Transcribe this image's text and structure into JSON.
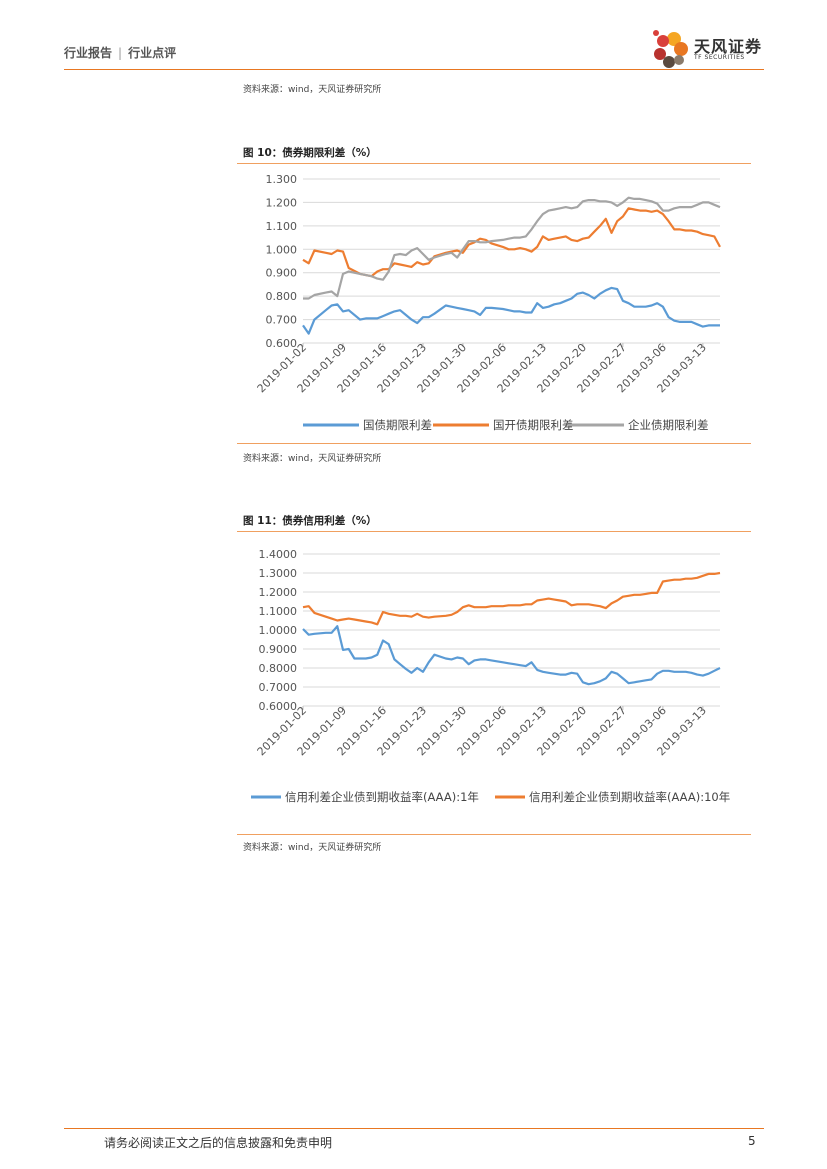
{
  "header": {
    "left": "行业报告",
    "right": "行业点评"
  },
  "logo": {
    "cn": "天风证券",
    "en": "TF SECURITIES"
  },
  "top_source": "资料来源：wind，天风证券研究所",
  "figures": [
    {
      "title": "图 10：债券期限利差（%）",
      "source": "资料来源：wind，天风证券研究所"
    },
    {
      "title": "图 11：债券信用利差（%）",
      "source": "资料来源：wind，天风证券研究所"
    }
  ],
  "footer": {
    "text": "请务必阅读正文之后的信息披露和免责申明",
    "page": "5"
  },
  "chart_data": [
    {
      "type": "line",
      "title": "图 10：债券期限利差（%）",
      "x_ticks": [
        "2019-01-02",
        "2019-01-09",
        "2019-01-16",
        "2019-01-23",
        "2019-01-30",
        "2019-02-06",
        "2019-02-13",
        "2019-02-20",
        "2019-02-27",
        "2019-03-06",
        "2019-03-13"
      ],
      "x_range_days": [
        0,
        73
      ],
      "y_ticks": [
        "0.600",
        "0.700",
        "0.800",
        "0.900",
        "1.000",
        "1.100",
        "1.200",
        "1.300"
      ],
      "ylim": [
        0.6,
        1.3
      ],
      "grid": true,
      "legend": "bottom",
      "series": [
        {
          "name": "国债期限利差",
          "color": "#5b9bd5",
          "x": [
            0,
            1,
            2,
            4,
            5,
            6,
            7,
            8,
            10,
            11,
            12,
            13,
            14,
            15,
            16,
            17,
            18,
            19,
            20,
            21,
            22,
            23,
            25,
            26,
            27,
            28,
            29,
            30,
            31,
            32,
            33,
            35,
            36,
            37,
            38,
            39,
            40,
            41,
            42,
            43,
            44,
            45,
            46,
            47,
            48,
            49,
            50,
            51,
            52,
            53,
            54,
            55,
            56,
            57,
            58,
            59,
            60,
            61,
            62,
            63,
            64,
            65,
            66,
            67,
            68,
            69,
            70,
            71,
            72,
            73
          ],
          "values": [
            0.675,
            0.64,
            0.7,
            0.74,
            0.76,
            0.765,
            0.735,
            0.74,
            0.7,
            0.705,
            0.705,
            0.705,
            0.715,
            0.725,
            0.735,
            0.74,
            0.72,
            0.7,
            0.685,
            0.71,
            0.71,
            0.725,
            0.76,
            0.755,
            0.75,
            0.745,
            0.74,
            0.735,
            0.72,
            0.75,
            0.75,
            0.745,
            0.74,
            0.735,
            0.735,
            0.73,
            0.73,
            0.77,
            0.75,
            0.755,
            0.765,
            0.77,
            0.78,
            0.79,
            0.81,
            0.815,
            0.805,
            0.79,
            0.81,
            0.825,
            0.835,
            0.83,
            0.78,
            0.77,
            0.755,
            0.755,
            0.755,
            0.76,
            0.77,
            0.755,
            0.71,
            0.695,
            0.69,
            0.69,
            0.69,
            0.68,
            0.67,
            0.675,
            0.675,
            0.675
          ]
        },
        {
          "name": "国开债期限利差",
          "color": "#ed7d31",
          "x": [
            0,
            1,
            2,
            4,
            5,
            6,
            7,
            8,
            10,
            11,
            12,
            13,
            14,
            15,
            16,
            17,
            18,
            19,
            20,
            21,
            22,
            23,
            25,
            26,
            27,
            28,
            29,
            30,
            31,
            32,
            33,
            35,
            36,
            37,
            38,
            39,
            40,
            41,
            42,
            43,
            44,
            45,
            46,
            47,
            48,
            49,
            50,
            51,
            52,
            53,
            54,
            55,
            56,
            57,
            58,
            59,
            60,
            61,
            62,
            63,
            64,
            65,
            66,
            67,
            68,
            69,
            70,
            71,
            72,
            73
          ],
          "values": [
            0.955,
            0.94,
            0.995,
            0.985,
            0.98,
            0.995,
            0.99,
            0.92,
            0.895,
            0.89,
            0.885,
            0.905,
            0.915,
            0.915,
            0.94,
            0.935,
            0.93,
            0.925,
            0.945,
            0.935,
            0.94,
            0.97,
            0.985,
            0.99,
            0.995,
            0.985,
            1.02,
            1.03,
            1.045,
            1.04,
            1.025,
            1.01,
            1.0,
            1.0,
            1.005,
            1.0,
            0.99,
            1.01,
            1.055,
            1.04,
            1.045,
            1.05,
            1.055,
            1.04,
            1.035,
            1.045,
            1.05,
            1.075,
            1.1,
            1.13,
            1.07,
            1.12,
            1.14,
            1.175,
            1.17,
            1.165,
            1.165,
            1.16,
            1.165,
            1.15,
            1.12,
            1.085,
            1.085,
            1.08,
            1.08,
            1.075,
            1.065,
            1.06,
            1.055,
            1.01
          ]
        },
        {
          "name": "企业债期限利差",
          "color": "#a5a5a5",
          "x": [
            0,
            1,
            2,
            4,
            5,
            6,
            7,
            8,
            10,
            11,
            12,
            13,
            14,
            15,
            16,
            17,
            18,
            19,
            20,
            21,
            22,
            23,
            25,
            26,
            27,
            28,
            29,
            30,
            31,
            32,
            33,
            35,
            36,
            37,
            38,
            39,
            40,
            41,
            42,
            43,
            44,
            45,
            46,
            47,
            48,
            49,
            50,
            51,
            52,
            53,
            54,
            55,
            56,
            57,
            58,
            59,
            60,
            61,
            62,
            63,
            64,
            65,
            66,
            67,
            68,
            69,
            70,
            71,
            72,
            73
          ],
          "values": [
            0.79,
            0.79,
            0.805,
            0.815,
            0.82,
            0.8,
            0.895,
            0.905,
            0.895,
            0.89,
            0.885,
            0.875,
            0.87,
            0.905,
            0.975,
            0.98,
            0.975,
            0.995,
            1.005,
            0.98,
            0.955,
            0.965,
            0.98,
            0.985,
            0.965,
            1.0,
            1.035,
            1.035,
            1.03,
            1.03,
            1.035,
            1.04,
            1.045,
            1.05,
            1.05,
            1.055,
            1.085,
            1.12,
            1.15,
            1.165,
            1.17,
            1.175,
            1.18,
            1.175,
            1.18,
            1.205,
            1.21,
            1.21,
            1.205,
            1.205,
            1.2,
            1.185,
            1.2,
            1.22,
            1.215,
            1.215,
            1.21,
            1.205,
            1.195,
            1.165,
            1.165,
            1.175,
            1.18,
            1.18,
            1.18,
            1.19,
            1.2,
            1.2,
            1.19,
            1.18
          ]
        }
      ]
    },
    {
      "type": "line",
      "title": "图 11：债券信用利差（%）",
      "x_ticks": [
        "2019-01-02",
        "2019-01-09",
        "2019-01-16",
        "2019-01-23",
        "2019-01-30",
        "2019-02-06",
        "2019-02-13",
        "2019-02-20",
        "2019-02-27",
        "2019-03-06",
        "2019-03-13"
      ],
      "x_range_days": [
        0,
        73
      ],
      "y_ticks": [
        "0.6000",
        "0.7000",
        "0.8000",
        "0.9000",
        "1.0000",
        "1.1000",
        "1.2000",
        "1.3000",
        "1.4000"
      ],
      "ylim": [
        0.6,
        1.4
      ],
      "grid": true,
      "legend": "bottom",
      "series": [
        {
          "name": "信用利差企业债到期收益率(AAA):1年",
          "color": "#5b9bd5",
          "x": [
            0,
            1,
            2,
            4,
            5,
            6,
            7,
            8,
            9,
            10,
            11,
            12,
            13,
            14,
            15,
            16,
            17,
            18,
            19,
            20,
            21,
            22,
            23,
            25,
            26,
            27,
            28,
            29,
            30,
            31,
            32,
            33,
            35,
            36,
            37,
            38,
            39,
            40,
            41,
            42,
            43,
            44,
            45,
            46,
            47,
            48,
            49,
            50,
            51,
            52,
            53,
            54,
            55,
            56,
            57,
            58,
            59,
            60,
            61,
            62,
            63,
            64,
            65,
            66,
            67,
            68,
            69,
            70,
            71,
            72,
            73
          ],
          "values": [
            1.005,
            0.975,
            0.98,
            0.985,
            0.985,
            1.02,
            0.895,
            0.9,
            0.85,
            0.85,
            0.85,
            0.855,
            0.87,
            0.945,
            0.925,
            0.845,
            0.82,
            0.795,
            0.775,
            0.8,
            0.78,
            0.83,
            0.87,
            0.85,
            0.845,
            0.855,
            0.85,
            0.82,
            0.84,
            0.845,
            0.845,
            0.84,
            0.83,
            0.825,
            0.82,
            0.815,
            0.81,
            0.83,
            0.79,
            0.78,
            0.775,
            0.77,
            0.765,
            0.765,
            0.775,
            0.77,
            0.725,
            0.715,
            0.72,
            0.73,
            0.745,
            0.78,
            0.77,
            0.745,
            0.72,
            0.725,
            0.73,
            0.735,
            0.74,
            0.77,
            0.785,
            0.785,
            0.78,
            0.78,
            0.78,
            0.775,
            0.765,
            0.76,
            0.77,
            0.785,
            0.8
          ]
        },
        {
          "name": "信用利差企业债到期收益率(AAA):10年",
          "color": "#ed7d31",
          "x": [
            0,
            1,
            2,
            4,
            5,
            6,
            7,
            8,
            9,
            10,
            11,
            12,
            13,
            14,
            15,
            16,
            17,
            18,
            19,
            20,
            21,
            22,
            23,
            25,
            26,
            27,
            28,
            29,
            30,
            31,
            32,
            33,
            35,
            36,
            37,
            38,
            39,
            40,
            41,
            42,
            43,
            44,
            45,
            46,
            47,
            48,
            49,
            50,
            51,
            52,
            53,
            54,
            55,
            56,
            57,
            58,
            59,
            60,
            61,
            62,
            63,
            64,
            65,
            66,
            67,
            68,
            69,
            70,
            71,
            72,
            73
          ],
          "values": [
            1.12,
            1.125,
            1.09,
            1.07,
            1.06,
            1.05,
            1.055,
            1.06,
            1.055,
            1.05,
            1.045,
            1.04,
            1.03,
            1.095,
            1.085,
            1.08,
            1.075,
            1.075,
            1.07,
            1.085,
            1.07,
            1.065,
            1.07,
            1.075,
            1.08,
            1.095,
            1.12,
            1.13,
            1.12,
            1.12,
            1.12,
            1.125,
            1.125,
            1.13,
            1.13,
            1.13,
            1.135,
            1.135,
            1.155,
            1.16,
            1.165,
            1.16,
            1.155,
            1.15,
            1.13,
            1.135,
            1.135,
            1.135,
            1.13,
            1.125,
            1.115,
            1.14,
            1.155,
            1.175,
            1.18,
            1.185,
            1.185,
            1.19,
            1.195,
            1.195,
            1.255,
            1.26,
            1.265,
            1.265,
            1.27,
            1.27,
            1.275,
            1.285,
            1.295,
            1.295,
            1.3
          ]
        }
      ]
    }
  ]
}
